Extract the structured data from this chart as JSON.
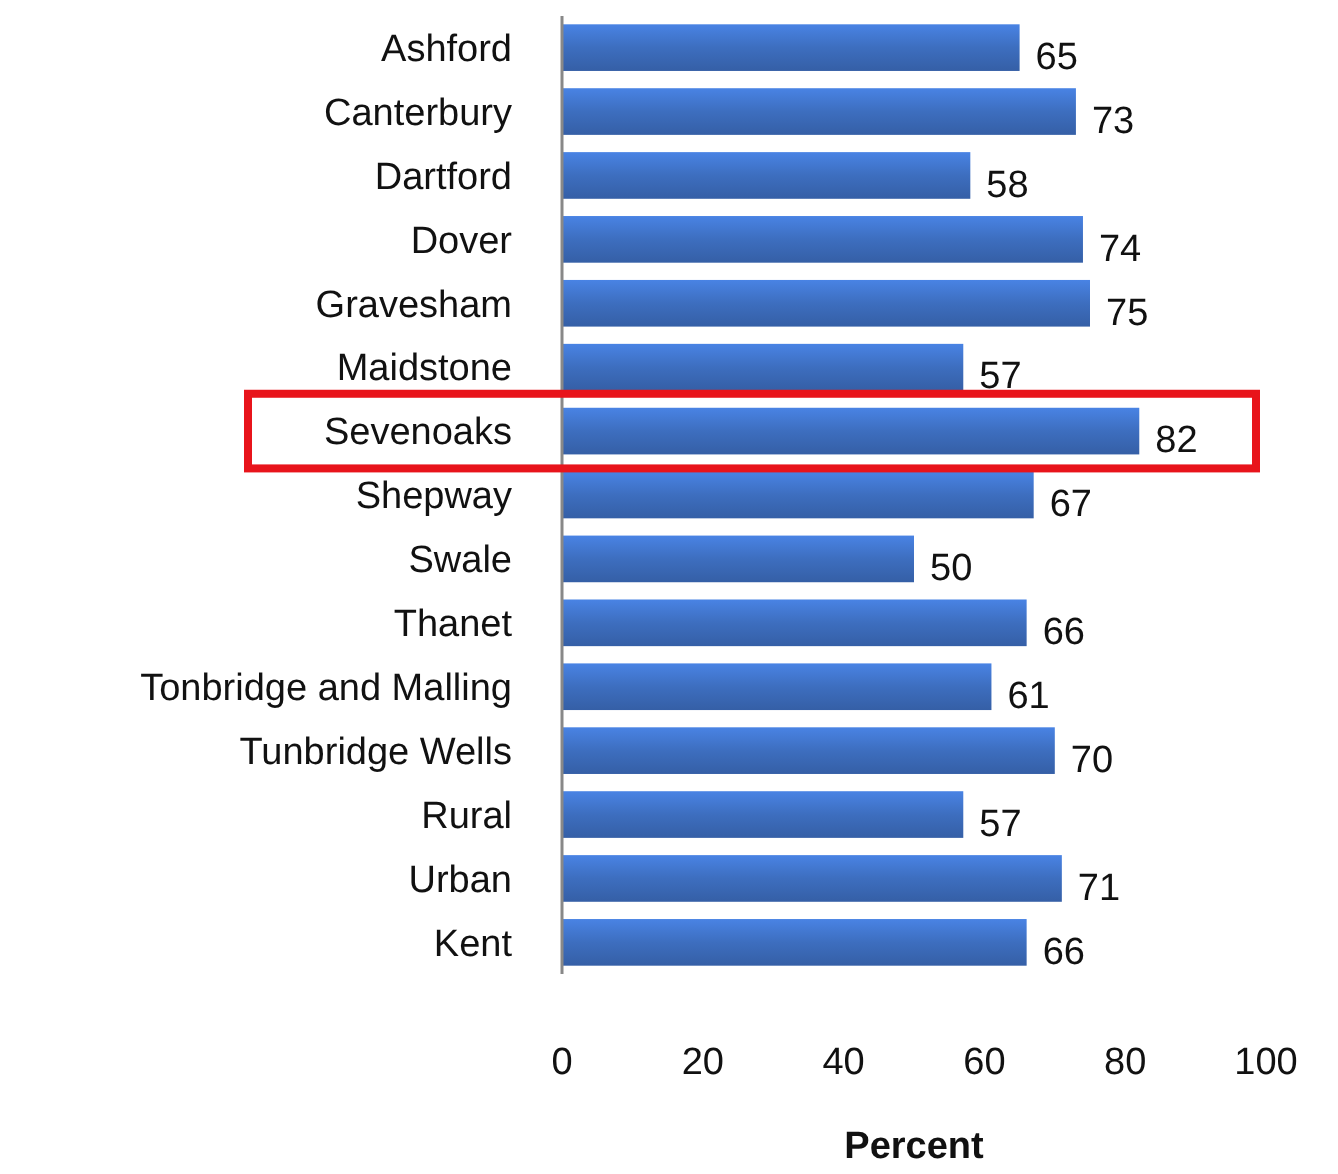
{
  "chart_data": {
    "type": "bar",
    "orientation": "horizontal",
    "xlabel": "Percent",
    "categories": [
      "Ashford",
      "Canterbury",
      "Dartford",
      "Dover",
      "Gravesham",
      "Maidstone",
      "Sevenoaks",
      "Shepway",
      "Swale",
      "Thanet",
      "Tonbridge and Malling",
      "Tunbridge Wells",
      "Rural",
      "Urban",
      "Kent"
    ],
    "values": [
      65,
      73,
      58,
      74,
      75,
      57,
      82,
      67,
      50,
      66,
      61,
      70,
      57,
      71,
      66
    ],
    "color": "#3d6ebf",
    "xlim": [
      0,
      100
    ],
    "xticks": [
      0,
      20,
      40,
      60,
      80,
      100
    ],
    "grid": false,
    "data_labels": true
  }
}
